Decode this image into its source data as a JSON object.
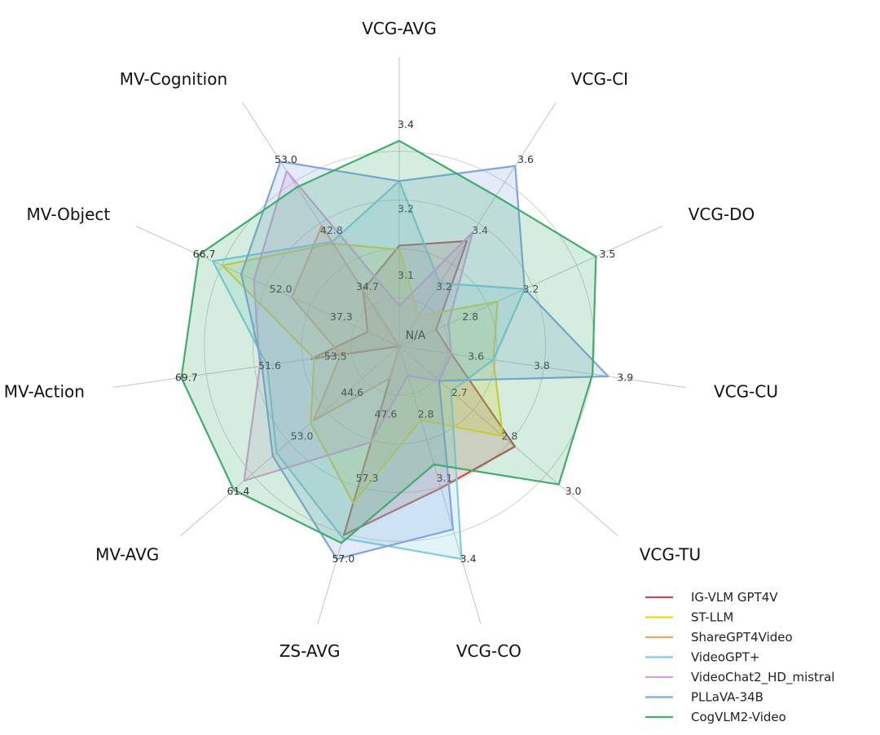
{
  "chart_data": {
    "type": "radar",
    "axes": [
      {
        "label": "VCG-AVG",
        "outer_tick": "3.4",
        "inner_tick": "3.2",
        "min": 2.9,
        "max": 3.45
      },
      {
        "label": "VCG-CI",
        "outer_tick": "3.6",
        "inner_tick": "3.4",
        "min": 3.0,
        "max": 3.62
      },
      {
        "label": "VCG-DO",
        "outer_tick": "3.5",
        "inner_tick": "3.2",
        "min": 2.7,
        "max": 3.52
      },
      {
        "label": "VCG-CU",
        "outer_tick": "3.9",
        "inner_tick": "3.8",
        "min": 3.5,
        "max": 3.92
      },
      {
        "label": "VCG-TU",
        "outer_tick": "3.0",
        "inner_tick": "2.8",
        "min": 2.6,
        "max": 3.02
      },
      {
        "label": "VCG-CO",
        "outer_tick": "3.4",
        "inner_tick": "3.1",
        "min": 2.7,
        "max": 3.42
      },
      {
        "label": "ZS-AVG",
        "outer_tick": "57.0",
        "inner_tick": "57.3",
        "min": 44.0,
        "max": 57.3
      },
      {
        "label": "MV-AVG",
        "outer_tick": "61.4",
        "inner_tick": "53.0",
        "min": 44.0,
        "max": 61.6
      },
      {
        "label": "MV-Action",
        "outer_tick": "69.7",
        "inner_tick": "51.6",
        "min": 40.0,
        "max": 69.9
      },
      {
        "label": "MV-Object",
        "outer_tick": "66.7",
        "inner_tick": "52.0",
        "min": 35.0,
        "max": 66.9
      },
      {
        "label": "MV-Cognition",
        "outer_tick": "53.0",
        "inner_tick": "42.8",
        "min": 30.0,
        "max": 53.2
      }
    ],
    "center_label": "N/A",
    "mid_ticks": [
      "3.1",
      "3.2",
      "2.8",
      "3.6",
      "2.7",
      "2.8",
      "47.6",
      "44.6",
      "53.5",
      "37.3",
      "34.7"
    ],
    "series": [
      {
        "name": "IG-VLM GPT4V",
        "color": "#c0504d",
        "values": [
          3.15,
          3.35,
          2.85,
          3.6,
          2.89,
          3.18,
          55.8,
          44.0,
          52.0,
          40.0,
          37.0
        ]
      },
      {
        "name": "ST-LLM",
        "color": "#f2d41c",
        "values": [
          3.14,
          3.1,
          3.1,
          3.68,
          2.86,
          2.95,
          53.8,
          53.3,
          51.6,
          63.0,
          42.8
        ]
      },
      {
        "name": "ShareGPT4Video",
        "color": "#f0a860",
        "values": [
          2.9,
          3.0,
          2.7,
          3.5,
          2.6,
          2.7,
          46.0,
          53.0,
          48.0,
          52.0,
          45.0
        ]
      },
      {
        "name": "VideoGPT+",
        "color": "#7fcde0",
        "values": [
          3.31,
          3.21,
          3.21,
          3.68,
          2.73,
          3.42,
          56.0,
          56.9,
          58.0,
          64.5,
          43.0
        ]
      },
      {
        "name": "VideoChat2_HD_mistral",
        "color": "#d8a0d8",
        "values": [
          3.0,
          3.38,
          2.9,
          3.6,
          2.7,
          2.8,
          50.0,
          60.3,
          59.0,
          58.0,
          51.8
        ]
      },
      {
        "name": "PLLaVA-34B",
        "color": "#7ea6e0",
        "values": [
          3.31,
          3.6,
          3.21,
          3.9,
          2.7,
          3.32,
          57.3,
          57.3,
          58.7,
          60.0,
          53.0
        ]
      },
      {
        "name": "CogVLM2-Video",
        "color": "#3fae6a",
        "values": [
          3.41,
          3.5,
          3.5,
          3.87,
          3.0,
          3.1,
          56.3,
          61.4,
          69.7,
          66.7,
          49.8
        ]
      }
    ],
    "legend_position": "bottom-right",
    "grid": true
  }
}
